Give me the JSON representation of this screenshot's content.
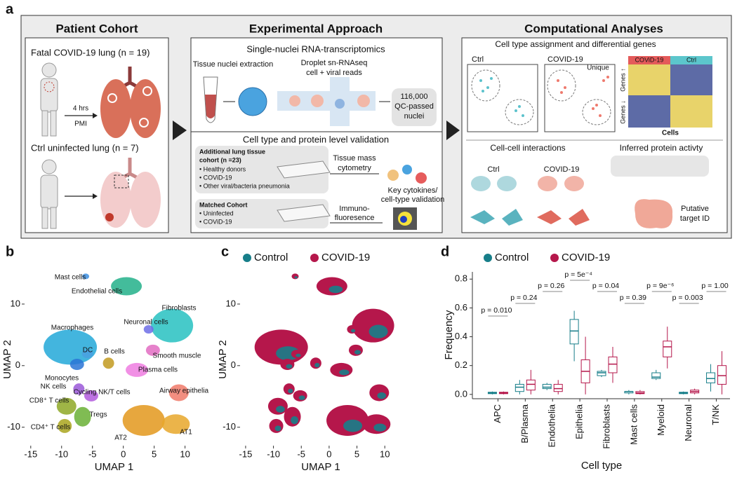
{
  "panel_a": {
    "label": "a",
    "cohort": {
      "title": "Patient Cohort",
      "fatal": "Fatal COVID-19 lung (n = 19)",
      "pmi_hours": "4 hrs",
      "pmi": "PMI",
      "ctrl": "Ctrl uninfected lung (n = 7)"
    },
    "approach": {
      "title": "Experimental Approach",
      "sn_title": "Single-nuclei RNA-transcriptomics",
      "extraction": "Tissue nuclei extraction",
      "droplet": "Droplet sn-RNAseq",
      "reads": "cell + viral reads",
      "nuclei_count": "116,000",
      "qc": "QC-passed",
      "nuclei": "nuclei",
      "validation_title": "Cell type and protein level validation",
      "additional": "Additional lung tissue",
      "additional_n": "cohort (n =23)",
      "additional_items": [
        "• Healthy donors",
        "• COViD-19",
        "• Other viral/bacteria pneumonia"
      ],
      "mass": "Tissue mass",
      "cytometry": "cytometry",
      "key": "Key cytokines/",
      "key2": "cell-type validation",
      "matched": "Matched Cohort",
      "matched_items": [
        "• Uninfected",
        "• COViD-19"
      ],
      "immuno": "Immuno-",
      "fluor": "fluoresence"
    },
    "analyses": {
      "title": "Computational Analyses",
      "assign_title": "Cell type assignment and differential genes",
      "ctrl": "Ctrl",
      "covid": "COVID-19",
      "unique": "Unique",
      "heat_covid": "COViD-19",
      "heat_ctrl": "Ctrl",
      "genes_up": "Genes ↑",
      "genes_down": "Genes ↓",
      "cells": "Cells",
      "interactions": "Cell-cell interactions",
      "protein": "Inferred protein activty",
      "int_ctrl": "Ctrl",
      "int_covid": "COVID-19",
      "putative": "Putative",
      "target": "target ID"
    }
  },
  "chart_data": [
    {
      "type": "scatter",
      "label": "b",
      "xlabel": "UMAP 1",
      "ylabel": "UMAP 2",
      "xlim": [
        -16,
        13
      ],
      "ylim": [
        -13,
        15
      ],
      "xticks": [
        -15,
        -10,
        -5,
        0,
        5,
        10
      ],
      "yticks": [
        -10,
        0,
        10
      ],
      "clusters": [
        {
          "name": "Mast cells",
          "color": "#3d8fe0",
          "x": -6.1,
          "y": 14.5
        },
        {
          "name": "Endothelial cells",
          "color": "#22b08a",
          "x": 0.5,
          "y": 12.9
        },
        {
          "name": "Fibroblasts",
          "color": "#27c1c1",
          "x": 7.9,
          "y": 6.5
        },
        {
          "name": "Neuronal cells",
          "color": "#6d6de6",
          "x": 4.1,
          "y": 5.9
        },
        {
          "name": "Macrophages",
          "color": "#22a8d8",
          "x": -8.6,
          "y": 3.0
        },
        {
          "name": "DC",
          "color": "#4aa0e0",
          "x": -5.8,
          "y": 1.9
        },
        {
          "name": "Monocytes",
          "color": "#2a74d6",
          "x": -7.5,
          "y": 0.2
        },
        {
          "name": "B cells",
          "color": "#c29a20",
          "x": -2.4,
          "y": 0.4
        },
        {
          "name": "Smooth muscle",
          "color": "#e26cc2",
          "x": 4.8,
          "y": 2.5
        },
        {
          "name": "Plasma cells",
          "color": "#ef7ce0",
          "x": 2.2,
          "y": -0.7
        },
        {
          "name": "NK cells",
          "color": "#9a58d8",
          "x": -7.2,
          "y": -3.8
        },
        {
          "name": "Cycling NK/T cells",
          "color": "#b259dd",
          "x": -5.2,
          "y": -4.9
        },
        {
          "name": "CD8⁺ T cells",
          "color": "#8ea826",
          "x": -9.2,
          "y": -6.6
        },
        {
          "name": "Tregs",
          "color": "#6ab035",
          "x": -6.6,
          "y": -8.3
        },
        {
          "name": "CD4⁺ T cells",
          "color": "#a9a41d",
          "x": -9.5,
          "y": -9.8
        },
        {
          "name": "Airway epithelia",
          "color": "#f07a6a",
          "x": 9.0,
          "y": -4.4
        },
        {
          "name": "AT2",
          "color": "#e3981c",
          "x": 3.3,
          "y": -8.9
        },
        {
          "name": "AT1",
          "color": "#e7a72a",
          "x": 8.5,
          "y": -9.5
        }
      ]
    },
    {
      "type": "scatter",
      "label": "c",
      "xlabel": "UMAP 1",
      "ylabel": "UMAP 2",
      "xlim": [
        -16,
        13
      ],
      "ylim": [
        -13,
        15
      ],
      "xticks": [
        -15,
        -10,
        -5,
        0,
        5,
        10
      ],
      "yticks": [
        -10,
        0,
        10
      ],
      "legend": [
        {
          "name": "Control",
          "color": "#177e89"
        },
        {
          "name": "COVID-19",
          "color": "#b5174b"
        }
      ]
    },
    {
      "type": "box",
      "label": "d",
      "xlabel": "Cell type",
      "ylabel": "Frequency",
      "categories": [
        "APC",
        "B/Plasma",
        "Endothelia",
        "Epithelia",
        "Fibroblasts",
        "Mast cells",
        "Myeloid",
        "Neuronal",
        "T/NK"
      ],
      "ylim": [
        -0.03,
        0.85
      ],
      "yticks": [
        {
          "value": 0,
          "label": "0.0"
        },
        0.2,
        0.4,
        0.6,
        0.8
      ],
      "series": [
        {
          "name": "Control",
          "color": "#177e89",
          "min": [
            0,
            0,
            0.03,
            0.23,
            0.12,
            0,
            0.1,
            0,
            0.02
          ],
          "q1": [
            0.005,
            0.02,
            0.04,
            0.35,
            0.13,
            0.01,
            0.11,
            0.005,
            0.08
          ],
          "median": [
            0.01,
            0.05,
            0.05,
            0.44,
            0.15,
            0.02,
            0.12,
            0.01,
            0.11
          ],
          "q3": [
            0.015,
            0.07,
            0.07,
            0.52,
            0.16,
            0.02,
            0.15,
            0.015,
            0.15
          ],
          "max": [
            0.02,
            0.1,
            0.08,
            0.58,
            0.17,
            0.03,
            0.17,
            0.02,
            0.21
          ]
        },
        {
          "name": "COVID-19",
          "color": "#b5174b",
          "min": [
            0,
            0,
            0,
            0,
            0.08,
            0,
            0.18,
            0,
            0
          ],
          "q1": [
            0.005,
            0.03,
            0.02,
            0.08,
            0.15,
            0.005,
            0.26,
            0.01,
            0.07
          ],
          "median": [
            0.01,
            0.07,
            0.04,
            0.16,
            0.21,
            0.01,
            0.33,
            0.02,
            0.13
          ],
          "q3": [
            0.015,
            0.1,
            0.07,
            0.24,
            0.26,
            0.02,
            0.37,
            0.03,
            0.2
          ],
          "max": [
            0.02,
            0.17,
            0.1,
            0.4,
            0.33,
            0.03,
            0.47,
            0.04,
            0.3
          ]
        }
      ],
      "annotations": [
        "p = 0.010",
        "p = 0.24",
        "p = 0.26",
        "p = 5e⁻⁴",
        "p = 0.04",
        "p = 0.39",
        "p = 9e⁻⁶",
        "p = 0.003",
        "p = 1.00"
      ]
    }
  ]
}
